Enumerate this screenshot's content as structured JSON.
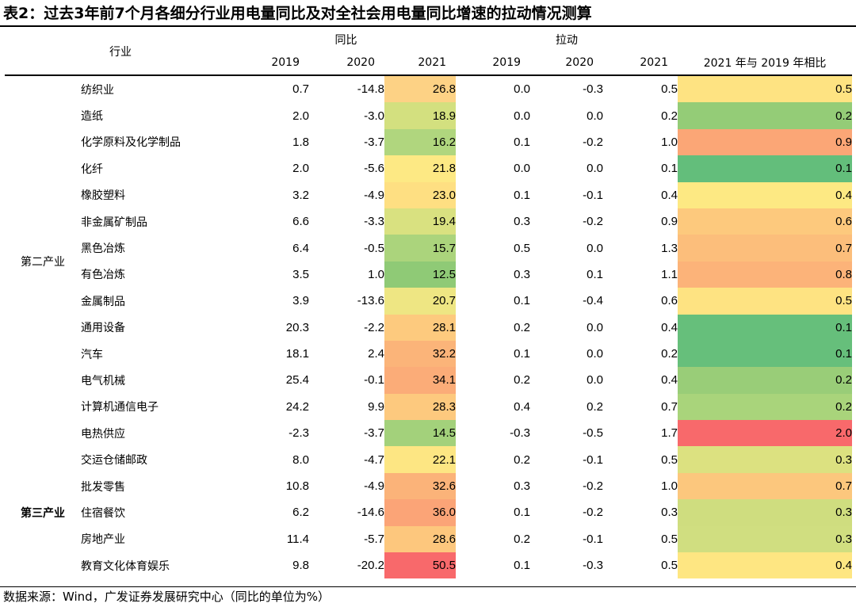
{
  "title": "表2：过去3年前7个月各细分行业用电量同比及对全社会用电量同比增速的拉动情况测算",
  "header": {
    "industry": "行业",
    "group_yoy": "同比",
    "group_pull": "拉动",
    "years": [
      "2019",
      "2020",
      "2021"
    ],
    "compare": "2021 年与 2019 年相比"
  },
  "categories": {
    "secondary": "第二产业",
    "tertiary": "第三产业"
  },
  "rows": [
    {
      "name": "纺织业",
      "y2019": "0.7",
      "y2020": "-14.8",
      "y2021": "26.8",
      "p2019": "0.0",
      "p2020": "-0.3",
      "p2021": "0.5",
      "cmp": "0.5",
      "c2021": "#fdd285",
      "ccmp": "#fee382"
    },
    {
      "name": "造纸",
      "y2019": "2.0",
      "y2020": "-3.0",
      "y2021": "18.9",
      "p2019": "0.0",
      "p2020": "0.0",
      "p2021": "0.2",
      "cmp": "0.2",
      "c2021": "#d3e07f",
      "ccmp": "#94cc77"
    },
    {
      "name": "化学原料及化学制品",
      "y2019": "1.8",
      "y2020": "-3.7",
      "y2021": "16.2",
      "p2019": "0.1",
      "p2020": "-0.2",
      "p2021": "1.0",
      "cmp": "0.9",
      "c2021": "#b0d67e",
      "ccmp": "#fba676"
    },
    {
      "name": "化纤",
      "y2019": "2.0",
      "y2020": "-5.6",
      "y2021": "21.8",
      "p2019": "0.0",
      "p2020": "0.0",
      "p2021": "0.1",
      "cmp": "0.1",
      "c2021": "#fde984",
      "ccmp": "#63be7b"
    },
    {
      "name": "橡胶塑料",
      "y2019": "3.2",
      "y2020": "-4.9",
      "y2021": "23.0",
      "p2019": "0.1",
      "p2020": "-0.1",
      "p2021": "0.4",
      "cmp": "0.4",
      "c2021": "#fedf82",
      "ccmp": "#fde983"
    },
    {
      "name": "非金属矿制品",
      "y2019": "6.6",
      "y2020": "-3.3",
      "y2021": "19.4",
      "p2019": "0.3",
      "p2020": "-0.2",
      "p2021": "0.9",
      "cmp": "0.6",
      "c2021": "#d9e180",
      "ccmp": "#fdc97d"
    },
    {
      "name": "黑色冶炼",
      "y2019": "6.4",
      "y2020": "-0.5",
      "y2021": "15.7",
      "p2019": "0.5",
      "p2020": "0.0",
      "p2021": "1.3",
      "cmp": "0.7",
      "c2021": "#abd47c",
      "ccmp": "#fcbe7b"
    },
    {
      "name": "有色冶炼",
      "y2019": "3.5",
      "y2020": "1.0",
      "y2021": "12.5",
      "p2019": "0.3",
      "p2020": "0.1",
      "p2021": "1.1",
      "cmp": "0.8",
      "c2021": "#8fca76",
      "ccmp": "#fcb379"
    },
    {
      "name": "金属制品",
      "y2019": "3.9",
      "y2020": "-13.6",
      "y2021": "20.7",
      "p2019": "0.1",
      "p2020": "-0.4",
      "p2021": "0.6",
      "cmp": "0.5",
      "c2021": "#eee683",
      "ccmp": "#fee382"
    },
    {
      "name": "通用设备",
      "y2019": "20.3",
      "y2020": "-2.2",
      "y2021": "28.1",
      "p2019": "0.2",
      "p2020": "0.0",
      "p2021": "0.4",
      "cmp": "0.1",
      "c2021": "#fdca7e",
      "ccmp": "#66bf7b"
    },
    {
      "name": "汽车",
      "y2019": "18.1",
      "y2020": "2.4",
      "y2021": "32.2",
      "p2019": "0.1",
      "p2020": "0.0",
      "p2021": "0.2",
      "cmp": "0.1",
      "c2021": "#fbb479",
      "ccmp": "#66bf7b"
    },
    {
      "name": "电气机械",
      "y2019": "25.4",
      "y2020": "-0.1",
      "y2021": "34.1",
      "p2019": "0.2",
      "p2020": "0.0",
      "p2021": "0.4",
      "cmp": "0.2",
      "c2021": "#fbac78",
      "ccmp": "#99cd78"
    },
    {
      "name": "计算机通信电子",
      "y2019": "24.2",
      "y2020": "9.9",
      "y2021": "28.3",
      "p2019": "0.4",
      "p2020": "0.2",
      "p2021": "0.7",
      "cmp": "0.2",
      "c2021": "#fdc97e",
      "ccmp": "#a9d47b"
    },
    {
      "name": "电热供应",
      "y2019": "-2.3",
      "y2020": "-3.7",
      "y2021": "14.5",
      "p2019": "-0.3",
      "p2020": "-0.5",
      "p2021": "1.7",
      "cmp": "2.0",
      "c2021": "#a3d17b",
      "ccmp": "#f8696b"
    },
    {
      "name": "交运仓储邮政",
      "y2019": "8.0",
      "y2020": "-4.7",
      "y2021": "22.1",
      "p2019": "0.2",
      "p2020": "-0.1",
      "p2021": "0.5",
      "cmp": "0.3",
      "c2021": "#fde683",
      "ccmp": "#dce180"
    },
    {
      "name": "批发零售",
      "y2019": "10.8",
      "y2020": "-4.9",
      "y2021": "32.6",
      "p2019": "0.3",
      "p2020": "-0.2",
      "p2021": "1.0",
      "cmp": "0.7",
      "c2021": "#fbb379",
      "ccmp": "#fcc77d"
    },
    {
      "name": "住宿餐饮",
      "y2019": "6.2",
      "y2020": "-14.6",
      "y2021": "36.0",
      "p2019": "0.1",
      "p2020": "-0.2",
      "p2021": "0.3",
      "cmp": "0.3",
      "c2021": "#fba477",
      "ccmp": "#cfdd7f"
    },
    {
      "name": "房地产业",
      "y2019": "11.4",
      "y2020": "-5.7",
      "y2021": "28.6",
      "p2019": "0.2",
      "p2020": "-0.1",
      "p2021": "0.5",
      "cmp": "0.3",
      "c2021": "#fdc77d",
      "ccmp": "#d0de80"
    },
    {
      "name": "教育文化体育娱乐",
      "y2019": "9.8",
      "y2020": "-20.2",
      "y2021": "50.5",
      "p2019": "0.1",
      "p2020": "-0.3",
      "p2021": "0.5",
      "cmp": "0.4",
      "c2021": "#f8696b",
      "ccmp": "#fee682"
    }
  ],
  "footer": "数据来源：Wind，广发证券发展研究中心（同比的单位为%）"
}
